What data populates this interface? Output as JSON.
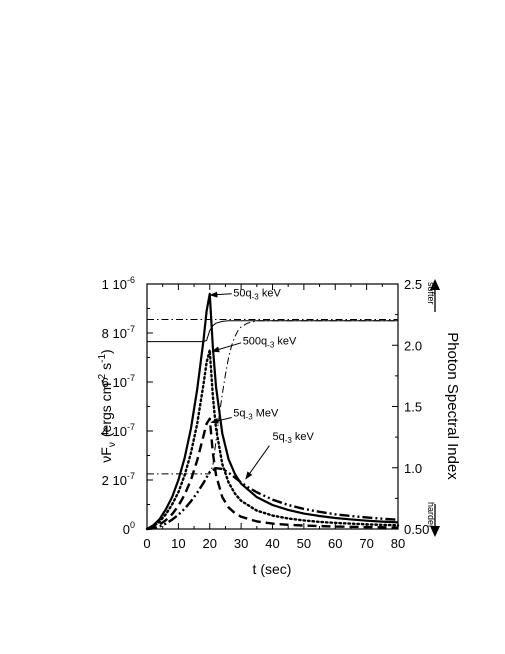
{
  "chart_data": {
    "type": "line",
    "xlabel": "t  (sec)",
    "ylabel_left_base": "νF",
    "ylabel_left_sub": "ν",
    "ylabel_left_units": "(ergs cm",
    "ylabel_left_exp1": "-2",
    "ylabel_left_mid": " s",
    "ylabel_left_exp2": "-1",
    "ylabel_left_close": ")",
    "ylabel_right": "Photon  Spectral  Index",
    "right_arrow_top_label": "softer",
    "right_arrow_bottom_label": "harder",
    "xlim": [
      0,
      80
    ],
    "ylim_left": [
      0,
      1e-06
    ],
    "ylim_right": [
      0.5,
      2.5
    ],
    "x_ticks": [
      {
        "value": 0,
        "label": "0"
      },
      {
        "value": 10,
        "label": "10"
      },
      {
        "value": 20,
        "label": "20"
      },
      {
        "value": 30,
        "label": "30"
      },
      {
        "value": 40,
        "label": "40"
      },
      {
        "value": 50,
        "label": "50"
      },
      {
        "value": 60,
        "label": "60"
      },
      {
        "value": 70,
        "label": "70"
      },
      {
        "value": 80,
        "label": "80"
      }
    ],
    "y_left_ticks": [
      {
        "value": 0,
        "mant": "0",
        "exp": "0"
      },
      {
        "value": 2e-07,
        "mant": "2 10",
        "exp": "-7"
      },
      {
        "value": 4e-07,
        "mant": "4 10",
        "exp": "-7"
      },
      {
        "value": 6e-07,
        "mant": "6 10",
        "exp": "-7"
      },
      {
        "value": 8e-07,
        "mant": "8 10",
        "exp": "-7"
      },
      {
        "value": 1e-06,
        "mant": "1 10",
        "exp": "-6"
      }
    ],
    "y_right_ticks": [
      {
        "value": 0.5,
        "label": "0.50"
      },
      {
        "value": 1.0,
        "label": "1.0"
      },
      {
        "value": 1.5,
        "label": "1.5"
      },
      {
        "value": 2.0,
        "label": "2.0"
      },
      {
        "value": 2.5,
        "label": "2.5"
      }
    ],
    "series": [
      {
        "axis": "left",
        "style": "solid",
        "width": 2.2,
        "annotation_base": "50q",
        "annotation_sub": "-3",
        "annotation_unit": " keV",
        "x": [
          0,
          2,
          4,
          6,
          8,
          10,
          12,
          14,
          16,
          18,
          19,
          20,
          21,
          22,
          24,
          26,
          28,
          30,
          35,
          40,
          45,
          50,
          55,
          60,
          65,
          70,
          75,
          80
        ],
        "y": [
          0,
          1.5e-08,
          4e-08,
          8e-08,
          1.3e-07,
          2e-07,
          2.9e-07,
          4.1e-07,
          5.7e-07,
          7.7e-07,
          8.9e-07,
          9.6e-07,
          7.4e-07,
          5.8e-07,
          3.9e-07,
          2.85e-07,
          2.25e-07,
          1.85e-07,
          1.3e-07,
          9.8e-08,
          7.8e-08,
          6.3e-08,
          5.3e-08,
          4.5e-08,
          3.9e-08,
          3.4e-08,
          3e-08,
          2.7e-08
        ]
      },
      {
        "axis": "left",
        "style": "dot",
        "width": 2.4,
        "annotation_base": "500q",
        "annotation_sub": "-3",
        "annotation_unit": " keV",
        "x": [
          0,
          2,
          4,
          6,
          8,
          10,
          12,
          14,
          16,
          18,
          19,
          20,
          21,
          22,
          24,
          26,
          28,
          30,
          35,
          40,
          45,
          50,
          55,
          60,
          65,
          70,
          75,
          80
        ],
        "y": [
          0,
          1e-08,
          3e-08,
          6e-08,
          1e-07,
          1.5e-07,
          2.2e-07,
          3.1e-07,
          4.3e-07,
          5.9e-07,
          6.8e-07,
          7.3e-07,
          5.4e-07,
          4.1e-07,
          2.65e-07,
          1.9e-07,
          1.45e-07,
          1.15e-07,
          7.5e-08,
          5.5e-08,
          4.3e-08,
          3.5e-08,
          2.9e-08,
          2.5e-08,
          2.2e-08,
          1.9e-08,
          1.7e-08,
          1.5e-08
        ]
      },
      {
        "axis": "left",
        "style": "dash",
        "width": 2.4,
        "annotation_base": "5q",
        "annotation_sub": "-3",
        "annotation_unit": " MeV",
        "x": [
          0,
          2,
          4,
          6,
          8,
          10,
          12,
          14,
          16,
          18,
          19,
          20,
          21,
          22,
          24,
          26,
          28,
          30,
          35,
          40,
          45,
          50,
          55,
          60,
          65,
          70,
          75,
          80
        ],
        "y": [
          0,
          6e-09,
          1.8e-08,
          3.6e-08,
          6e-08,
          9.5e-08,
          1.4e-07,
          2e-07,
          2.8e-07,
          3.8e-07,
          4.3e-07,
          4.5e-07,
          3.1e-07,
          2.2e-07,
          1.3e-07,
          8.8e-08,
          6.5e-08,
          5e-08,
          3.1e-08,
          2.2e-08,
          1.7e-08,
          1.4e-08,
          1.2e-08,
          1e-08,
          9e-09,
          8e-09,
          7e-09,
          6e-09
        ]
      },
      {
        "axis": "left",
        "style": "dashdotdot",
        "width": 2.4,
        "annotation_base": "5q",
        "annotation_sub": "-3",
        "annotation_unit": " keV",
        "x": [
          0,
          2,
          4,
          6,
          8,
          10,
          12,
          14,
          16,
          18,
          20,
          22,
          24,
          26,
          28,
          30,
          32,
          35,
          40,
          45,
          50,
          55,
          60,
          65,
          70,
          75,
          80
        ],
        "y": [
          0,
          3e-09,
          1e-08,
          2.2e-08,
          3.8e-08,
          5.8e-08,
          8.3e-08,
          1.13e-07,
          1.48e-07,
          1.88e-07,
          2.33e-07,
          2.48e-07,
          2.45e-07,
          2.3e-07,
          2.1e-07,
          1.9e-07,
          1.72e-07,
          1.5e-07,
          1.2e-07,
          9.8e-08,
          8.2e-08,
          7e-08,
          6e-08,
          5.3e-08,
          4.7e-08,
          4.2e-08,
          3.8e-08
        ]
      },
      {
        "axis": "right",
        "style": "thin-solid",
        "width": 1.0,
        "x": [
          0,
          18,
          19,
          19.5,
          20,
          21,
          22,
          24,
          26,
          30,
          40,
          60,
          80
        ],
        "y": [
          2.03,
          2.03,
          2.04,
          2.08,
          2.12,
          2.16,
          2.18,
          2.195,
          2.2,
          2.2,
          2.2,
          2.2,
          2.2
        ]
      },
      {
        "axis": "right",
        "style": "thin-dashdot",
        "width": 1.0,
        "x": [
          0,
          20,
          21,
          22,
          23,
          24,
          25,
          26,
          27,
          28,
          29,
          30,
          32,
          35,
          40,
          60,
          80
        ],
        "y": [
          0.95,
          0.95,
          1.02,
          1.22,
          1.42,
          1.6,
          1.76,
          1.9,
          2.0,
          2.07,
          2.12,
          2.15,
          2.18,
          2.2,
          2.2,
          2.2,
          2.2
        ]
      },
      {
        "axis": "right",
        "style": "thin-dashdot",
        "width": 1.0,
        "x": [
          0,
          80
        ],
        "y": [
          2.21,
          2.21
        ]
      }
    ],
    "grid": false,
    "legend": "none"
  }
}
